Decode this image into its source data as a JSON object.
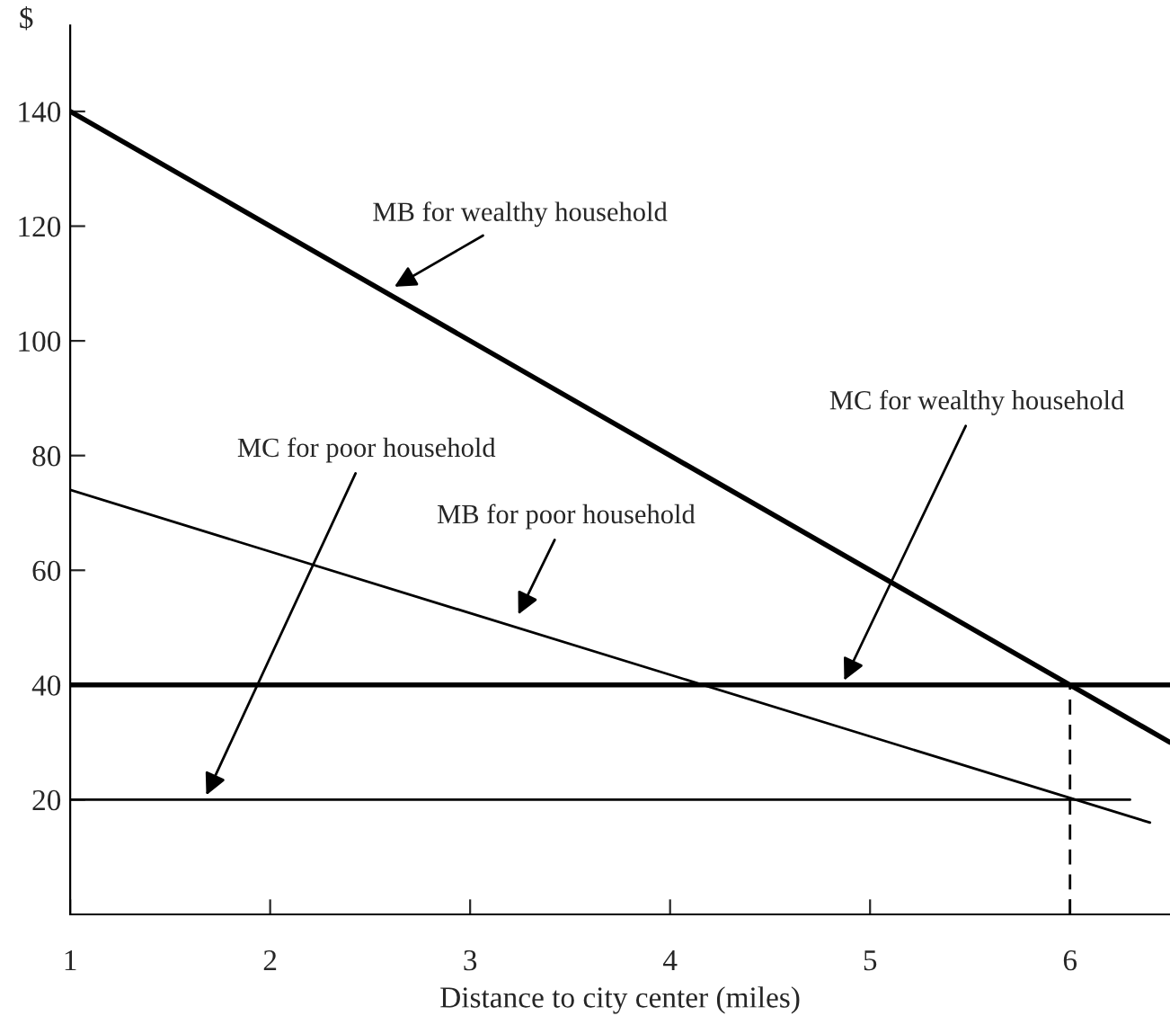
{
  "chart_data": {
    "type": "line",
    "xlabel": "Distance to city center (miles)",
    "ylabel": "$",
    "xlim": [
      1,
      6.5
    ],
    "ylim": [
      0,
      155
    ],
    "xticks": [
      1,
      2,
      3,
      4,
      5,
      6
    ],
    "yticks": [
      20,
      40,
      60,
      80,
      100,
      120,
      140
    ],
    "grid": false,
    "legend": false,
    "series": [
      {
        "x": [
          1,
          6.5
        ],
        "values": [
          140,
          30
        ],
        "color": "#000000",
        "line_style": "solid"
      },
      {
        "x": [
          1,
          6.4
        ],
        "values": [
          74,
          16
        ],
        "color": "#000000",
        "line_style": "solid"
      },
      {
        "x": [
          1,
          6.5
        ],
        "values": [
          40,
          40
        ],
        "color": "#000000",
        "line_style": "solid"
      },
      {
        "x": [
          1,
          6.3
        ],
        "values": [
          20,
          20
        ],
        "color": "#000000",
        "line_style": "solid"
      },
      {
        "x": [
          6,
          6
        ],
        "values": [
          0,
          40
        ],
        "color": "#000000",
        "line_style": "dashed"
      }
    ],
    "annotations": [
      {
        "text": "MB for wealthy household",
        "x": 2.6,
        "y": 109
      },
      {
        "text": "MC for poor household",
        "x": 1.67,
        "y": 20
      },
      {
        "text": "MB for poor household",
        "x": 3.23,
        "y": 51.5
      },
      {
        "text": "MC for wealthy household",
        "x": 4.86,
        "y": 40
      }
    ]
  }
}
